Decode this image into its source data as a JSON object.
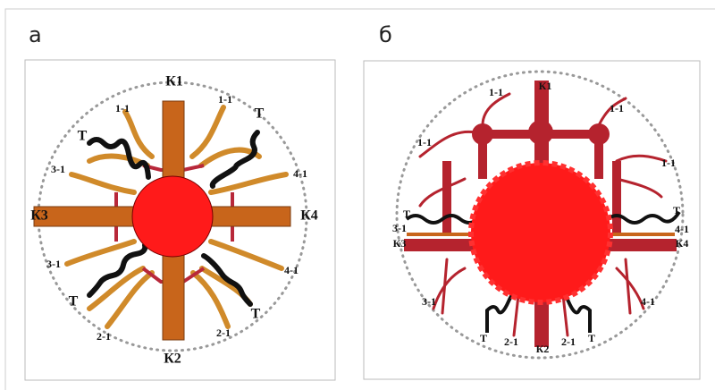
{
  "panels": [
    {
      "label": "а",
      "labels": [
        "К1",
        "1-1",
        "1-1",
        "Т",
        "Т",
        "3-1",
        "4-1",
        "К3",
        "К4",
        "3-1",
        "4-1",
        "Т",
        "Т",
        "2-1",
        "2-1",
        "К2"
      ]
    },
    {
      "label": "б",
      "labels": [
        "1-1",
        "К1",
        "1-1",
        "1-1",
        "1-1",
        "Т",
        "Т",
        "3-1",
        "4-1",
        "К3",
        "К4",
        "3-1",
        "4-1",
        "Т",
        "2-1",
        "К2",
        "2-1",
        "Т"
      ]
    }
  ]
}
